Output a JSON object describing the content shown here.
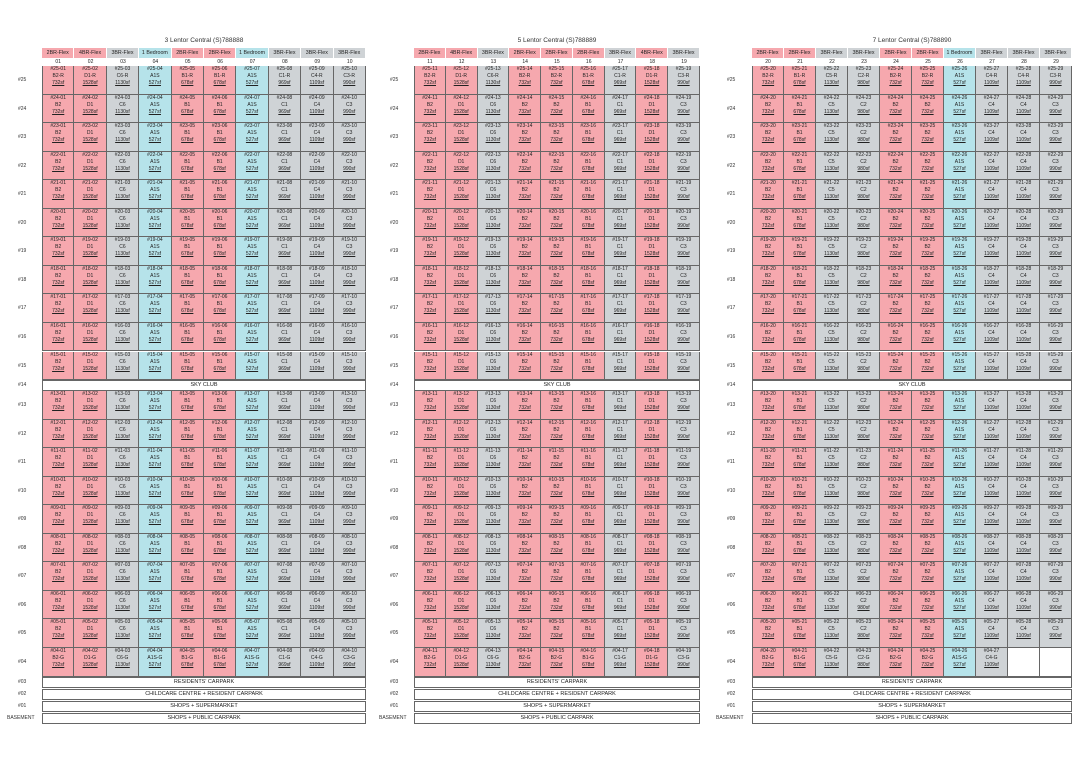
{
  "colors": {
    "red": "#f6a8ae",
    "blue": "#b6e3ea",
    "grey": "#cfd3d6",
    "white": "#ffffff"
  },
  "blocks": [
    {
      "title": "3 Lentor Central (S)788888",
      "units": [
        "01",
        "02",
        "03",
        "04",
        "05",
        "06",
        "07",
        "08",
        "09",
        "10"
      ],
      "types": [
        "2BR-Flex",
        "4BR-Flex",
        "3BR-Flex",
        "1 Bedroom",
        "2BR-Flex",
        "2BR-Flex",
        "1 Bedroom",
        "3BR-Flex",
        "3BR-Flex",
        "3BR-Flex"
      ],
      "colors": [
        "red",
        "red",
        "grey",
        "blue",
        "red",
        "red",
        "blue",
        "grey",
        "grey",
        "grey"
      ],
      "models": [
        "B2",
        "D1",
        "C6",
        "A1S",
        "B1",
        "B1",
        "A1S",
        "C1",
        "C4",
        "C3"
      ],
      "models25": [
        "B2-R",
        "D1-R",
        "C6-R",
        "A1S",
        "B1-R",
        "B1-R",
        "A1S",
        "C1-R",
        "C4-R",
        "C3-R"
      ],
      "models4": [
        "B2-G",
        "D1-G",
        "C6-G",
        "A1S-G",
        "B1-G",
        "B1-G",
        "A1S-G",
        "C1-G",
        "C4-G",
        "C3-G"
      ],
      "sizes": [
        "732sf",
        "1528sf",
        "1130sf",
        "527sf",
        "678sf",
        "678sf",
        "527sf",
        "969sf",
        "1109sf",
        "990sf"
      ]
    },
    {
      "title": "5 Lentor Central (S)788889",
      "units": [
        "11",
        "12",
        "13",
        "14",
        "15",
        "16",
        "17",
        "18",
        "19"
      ],
      "types": [
        "2BR-Flex",
        "4BR-Flex",
        "3BR-Flex",
        "2BR-Flex",
        "2BR-Flex",
        "2BR-Flex",
        "3BR-Flex",
        "4BR-Flex",
        "3BR-Flex"
      ],
      "colors": [
        "red",
        "red",
        "grey",
        "red",
        "red",
        "red",
        "grey",
        "red",
        "grey"
      ],
      "models": [
        "B2",
        "D1",
        "C6",
        "B2",
        "B2",
        "B1",
        "C1",
        "D1",
        "C3"
      ],
      "models25": [
        "B2-R",
        "D1-R",
        "C6-R",
        "B2-R",
        "B2-R",
        "B1-R",
        "C1-R",
        "D1-R",
        "C3-R"
      ],
      "models4": [
        "B2-G",
        "D1-G",
        "C6-G",
        "B2-G",
        "B2-G",
        "B1-G",
        "C1-G",
        "D1-G",
        "C3-G"
      ],
      "sizes": [
        "732sf",
        "1528sf",
        "1130sf",
        "732sf",
        "732sf",
        "678sf",
        "969sf",
        "1528sf",
        "990sf"
      ]
    },
    {
      "title": "7 Lentor Central (S)788890",
      "units": [
        "20",
        "21",
        "22",
        "23",
        "24",
        "25",
        "26",
        "27",
        "28",
        "29"
      ],
      "types": [
        "2BR-Flex",
        "2BR-Flex",
        "3BR-Flex",
        "3BR-Flex",
        "2BR-Flex",
        "2BR-Flex",
        "1 Bedroom",
        "3BR-Flex",
        "3BR-Flex",
        "3BR-Flex"
      ],
      "colors": [
        "red",
        "red",
        "grey",
        "grey",
        "red",
        "red",
        "blue",
        "grey",
        "grey",
        "grey"
      ],
      "models": [
        "B2",
        "B1",
        "C5",
        "C2",
        "B2",
        "B2",
        "A1S",
        "C4",
        "C4",
        "C3"
      ],
      "models25": [
        "B2-R",
        "B1-R",
        "C5-R",
        "C2-R",
        "B2-R",
        "B2-R",
        "A1S",
        "C4-R",
        "C4-R",
        "C3-R"
      ],
      "models4": [
        "B2-G",
        "B1-G",
        "C5-G",
        "C2-G",
        "B2-G",
        "B2-G",
        "A1S-G",
        "C4-G",
        "",
        ""
      ],
      "sizes": [
        "732sf",
        "678sf",
        "1130sf",
        "980sf",
        "732sf",
        "732sf",
        "527sf",
        "1109sf",
        "1109sf",
        "990sf"
      ]
    }
  ],
  "floors": [
    "#25",
    "#24",
    "#23",
    "#22",
    "#21",
    "#20",
    "#19",
    "#18",
    "#17",
    "#16",
    "#15",
    "#14",
    "#13",
    "#12",
    "#11",
    "#10",
    "#09",
    "#08",
    "#07",
    "#06",
    "#05",
    "#04",
    "#03",
    "#02",
    "#01",
    "BASEMENT"
  ],
  "sky_club": "SKY CLUB",
  "bottom_bars": [
    "RESIDENTS' CARPARK",
    "CHILDCARE CENTRE + RESIDENT CARPARK",
    "SHOPS + SUPERMARKET",
    "SHOPS + PUBLIC CARPARK"
  ]
}
